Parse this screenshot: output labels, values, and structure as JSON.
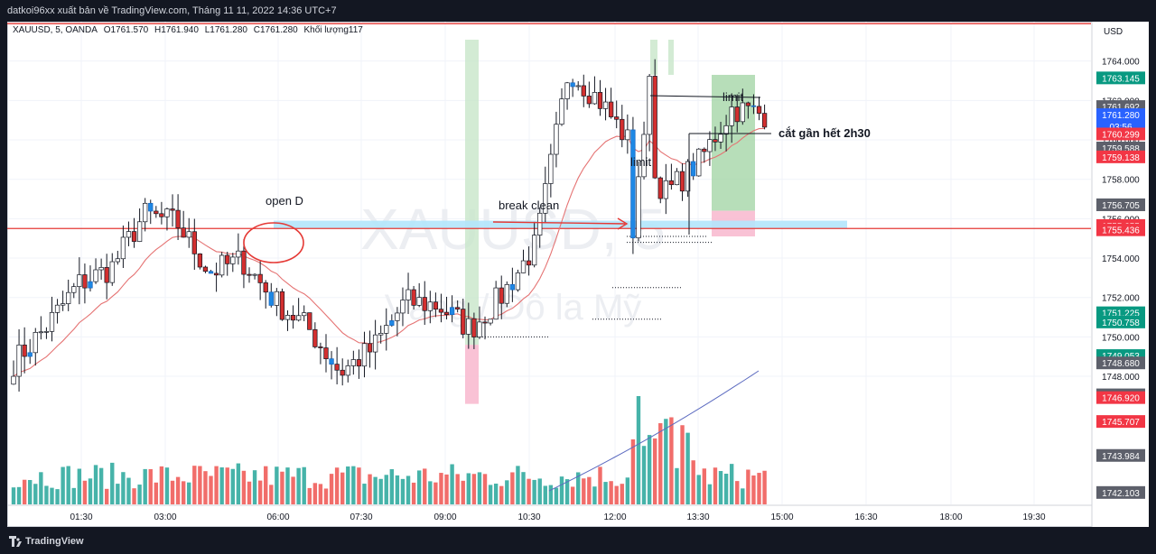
{
  "header": {
    "caption": "datkoi96xx xuất bản về TradingView.com, Tháng 11 11, 2022 14:36 UTC+7"
  },
  "symbol": {
    "name": "XAUUSD, 5, OANDA",
    "open": "O1761.570",
    "high": "H1761.940",
    "low": "L1761.280",
    "close": "C1761.280",
    "volume": "Khối lượng117"
  },
  "watermark": {
    "ticker": "XAUUSD, 5",
    "description": "Vàng / Đô la Mỹ"
  },
  "currency": "USD",
  "annotations": {
    "open_d": "open D",
    "break_clean": "break clean",
    "limit_top": "limit",
    "limit_left": "limit",
    "note": "cắt gần hết 2h30"
  },
  "price_tags": [
    {
      "text": "1763.145",
      "bg": "#089981"
    },
    {
      "text": "1761.692",
      "bg": "#5d606b"
    },
    {
      "text": "1761.280",
      "bg": "#2962ff"
    },
    {
      "text": "03:56",
      "bg": "#2962ff"
    },
    {
      "text": "1760.299",
      "bg": "#f23645"
    },
    {
      "text": "1759.588",
      "bg": "#5d606b"
    },
    {
      "text": "1759.138",
      "bg": "#f23645"
    },
    {
      "text": "1756.705",
      "bg": "#5d606b"
    },
    {
      "text": "1755.655",
      "bg": "#f23645"
    },
    {
      "text": "1755.436",
      "bg": "#f23645"
    },
    {
      "text": "1751.225",
      "bg": "#089981"
    },
    {
      "text": "1750.758",
      "bg": "#089981"
    },
    {
      "text": "1749.053",
      "bg": "#089981"
    },
    {
      "text": "1748.680",
      "bg": "#5d606b"
    },
    {
      "text": "1747.060",
      "bg": "#5d606b"
    },
    {
      "text": "1746.920",
      "bg": "#f23645"
    },
    {
      "text": "1745.707",
      "bg": "#f23645"
    },
    {
      "text": "1743.984",
      "bg": "#5d606b"
    },
    {
      "text": "1742.103",
      "bg": "#5d606b"
    }
  ],
  "footer": {
    "brand": "TradingView"
  },
  "chart_data": {
    "type": "candlestick",
    "interval": "5",
    "x_ticks": [
      "01:30",
      "03:00",
      "06:00",
      "07:30",
      "09:00",
      "10:30",
      "12:00",
      "13:30",
      "15:00",
      "16:30",
      "18:00",
      "19:30"
    ],
    "y_ticks": [
      1764,
      1762,
      1760,
      1758,
      1756,
      1754,
      1752,
      1750,
      1748
    ],
    "ylim": [
      1741.5,
      1766.0
    ],
    "horizontal_lines": [
      1765.9,
      1755.5
    ],
    "ohlc_anchors": [
      [
        1749.8,
        1750.3,
        1747.5,
        1748.7
      ],
      [
        1748.7,
        1751.0,
        1747.0,
        1750.5
      ],
      [
        1750.5,
        1753.5,
        1749.9,
        1752.7
      ],
      [
        1752.7,
        1753.8,
        1751.9,
        1753.5
      ],
      [
        1753.5,
        1757.2,
        1753.0,
        1756.2
      ],
      [
        1756.2,
        1756.9,
        1754.6,
        1755.8
      ],
      [
        1755.8,
        1756.0,
        1753.1,
        1753.3
      ],
      [
        1753.3,
        1754.8,
        1752.3,
        1753.9
      ],
      [
        1753.9,
        1754.1,
        1751.2,
        1751.8
      ],
      [
        1751.8,
        1752.8,
        1749.8,
        1750.5
      ],
      [
        1750.5,
        1750.9,
        1748.0,
        1748.2
      ],
      [
        1748.2,
        1749.6,
        1747.9,
        1749.4
      ],
      [
        1749.4,
        1752.3,
        1749.1,
        1751.8
      ],
      [
        1751.8,
        1752.7,
        1750.9,
        1751.6
      ],
      [
        1751.6,
        1751.9,
        1749.9,
        1750.4
      ],
      [
        1750.4,
        1752.6,
        1750.2,
        1752.2
      ],
      [
        1752.2,
        1755.0,
        1751.9,
        1754.7
      ],
      [
        1754.7,
        1764.5,
        1754.5,
        1763.6
      ],
      [
        1763.6,
        1765.2,
        1761.3,
        1761.9
      ],
      [
        1761.9,
        1762.2,
        1759.0,
        1759.5
      ],
      [
        1759.5,
        1760.3,
        1756.8,
        1757.3
      ],
      [
        1757.3,
        1759.4,
        1756.8,
        1758.9
      ],
      [
        1758.9,
        1762.1,
        1758.2,
        1761.6
      ],
      [
        1761.6,
        1762.4,
        1761.1,
        1761.3
      ]
    ],
    "volume_peak": 285
  }
}
